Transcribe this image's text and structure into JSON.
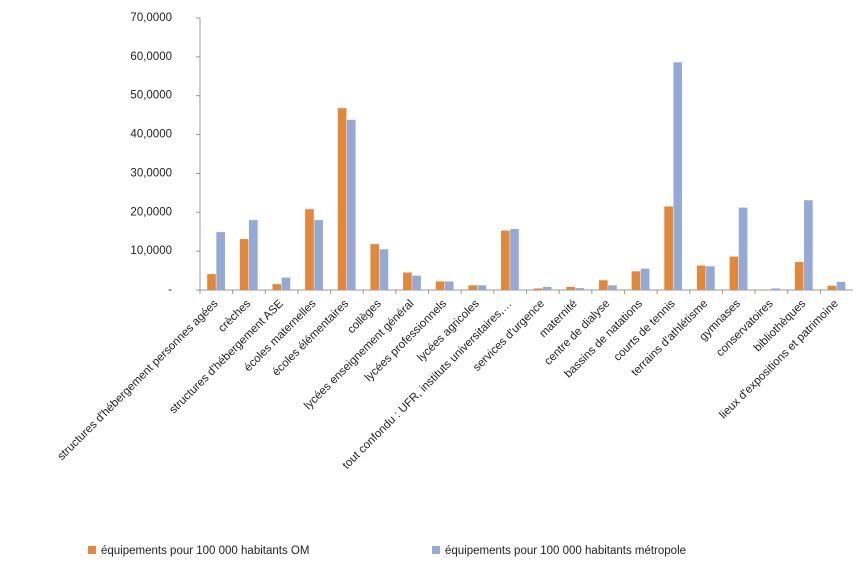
{
  "chart_data": {
    "type": "bar",
    "categories": [
      "structures d'hébergement personnes agées",
      "crèches",
      "structures d'hébergement ASE",
      "écoles maternelles",
      "écoles élémentaires",
      "collèges",
      "lycées enseignement général",
      "lycées professionnels",
      "lycées agricoles",
      "tout confondu : UFR, instituts universitaires,…",
      "services d'urgence",
      "maternité",
      "centre de dialyse",
      "bassins de natations",
      "courts de tennis",
      "terrains d'athlétisme",
      "gymnases",
      "conservatoires",
      "bibliothèques",
      "lieux d'expositions et patrimoine"
    ],
    "series": [
      {
        "name": "équipements pour 100 000 habitants OM",
        "color": "#e3883a",
        "values": [
          4.1,
          13.1,
          1.5,
          20.8,
          46.8,
          11.8,
          4.5,
          2.2,
          1.2,
          15.3,
          0.4,
          0.8,
          2.5,
          4.8,
          21.5,
          6.3,
          8.6,
          0.1,
          7.2,
          1.1
        ]
      },
      {
        "name": "équipements  pour 100 000 habitants métropole",
        "color": "#94a9d6",
        "values": [
          14.9,
          18.0,
          3.2,
          18.0,
          43.8,
          10.5,
          3.7,
          2.2,
          1.2,
          15.7,
          0.8,
          0.5,
          1.2,
          5.5,
          58.6,
          6.1,
          21.2,
          0.4,
          23.1,
          2.1
        ]
      }
    ],
    "ylim": [
      0,
      70
    ],
    "yticks": [
      {
        "value": 0,
        "label": "-"
      },
      {
        "value": 10,
        "label": "10,0000"
      },
      {
        "value": 20,
        "label": "20,0000"
      },
      {
        "value": 30,
        "label": "30,0000"
      },
      {
        "value": 40,
        "label": "40,0000"
      },
      {
        "value": 50,
        "label": "50,0000"
      },
      {
        "value": 60,
        "label": "60,0000"
      },
      {
        "value": 70,
        "label": "70,0000"
      }
    ],
    "grid": false
  }
}
